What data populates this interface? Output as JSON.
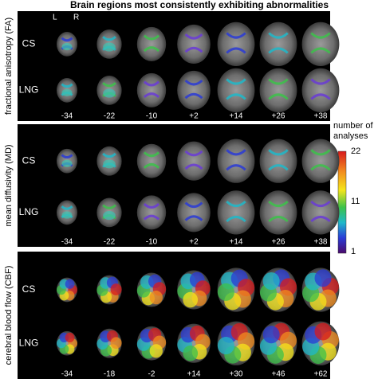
{
  "title": "Brain regions most consistently exhibiting abnormalities",
  "hemisphere_labels": [
    "L",
    "R"
  ],
  "panels": [
    {
      "label": "fractional anisotropy (FA)",
      "rows": [
        "CS",
        "LNG"
      ],
      "slices": [
        "-34",
        "-22",
        "-10",
        "+2",
        "+14",
        "+26",
        "+38"
      ]
    },
    {
      "label": "mean diffusivity (MD)",
      "rows": [
        "CS",
        "LNG"
      ],
      "slices": [
        "-34",
        "-22",
        "-10",
        "+2",
        "+14",
        "+26",
        "+38"
      ]
    },
    {
      "label": "cerebral blood flow (CBF)",
      "rows": [
        "CS",
        "LNG"
      ],
      "slices": [
        "-34",
        "-18",
        "-2",
        "+14",
        "+30",
        "+46",
        "+62"
      ]
    }
  ],
  "colorbar": {
    "title": "number of analyses",
    "ticks": [
      "22",
      "11",
      "1"
    ]
  }
}
